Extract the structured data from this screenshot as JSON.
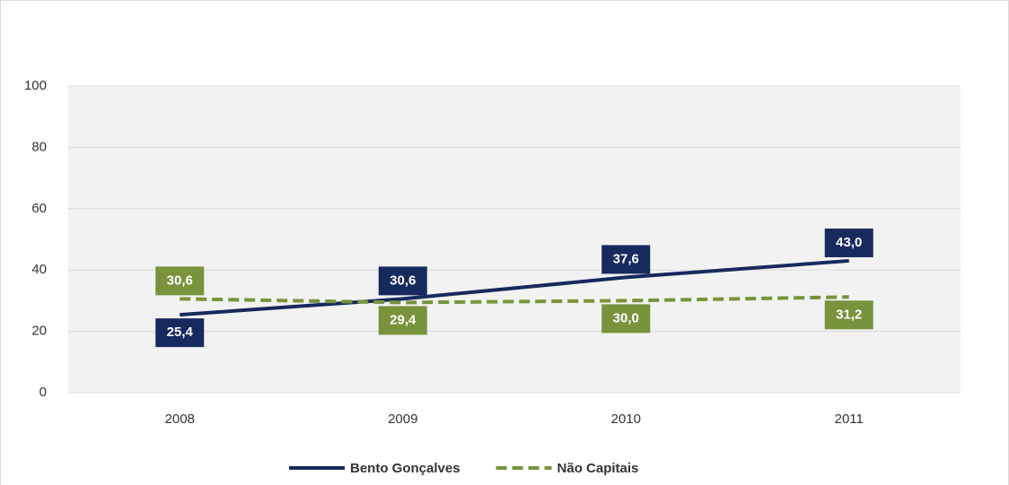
{
  "chart_data": {
    "type": "line",
    "categories": [
      "2008",
      "2009",
      "2010",
      "2011"
    ],
    "series": [
      {
        "name": "Bento Gonçalves",
        "color": "#172a5e",
        "dash": false,
        "values": [
          25.4,
          30.6,
          37.6,
          43.0
        ],
        "value_labels": [
          "25,4",
          "30,6",
          "37,6",
          "43,0"
        ]
      },
      {
        "name": "Não Capitais",
        "color": "#77933c",
        "dash": true,
        "values": [
          30.6,
          29.4,
          30.0,
          31.2
        ],
        "value_labels": [
          "30,6",
          "29,4",
          "30,0",
          "31,2"
        ]
      }
    ],
    "ylim": [
      0,
      100
    ],
    "yticks": [
      0,
      20,
      40,
      60,
      80,
      100
    ],
    "grid": true,
    "legend": "bottom"
  }
}
